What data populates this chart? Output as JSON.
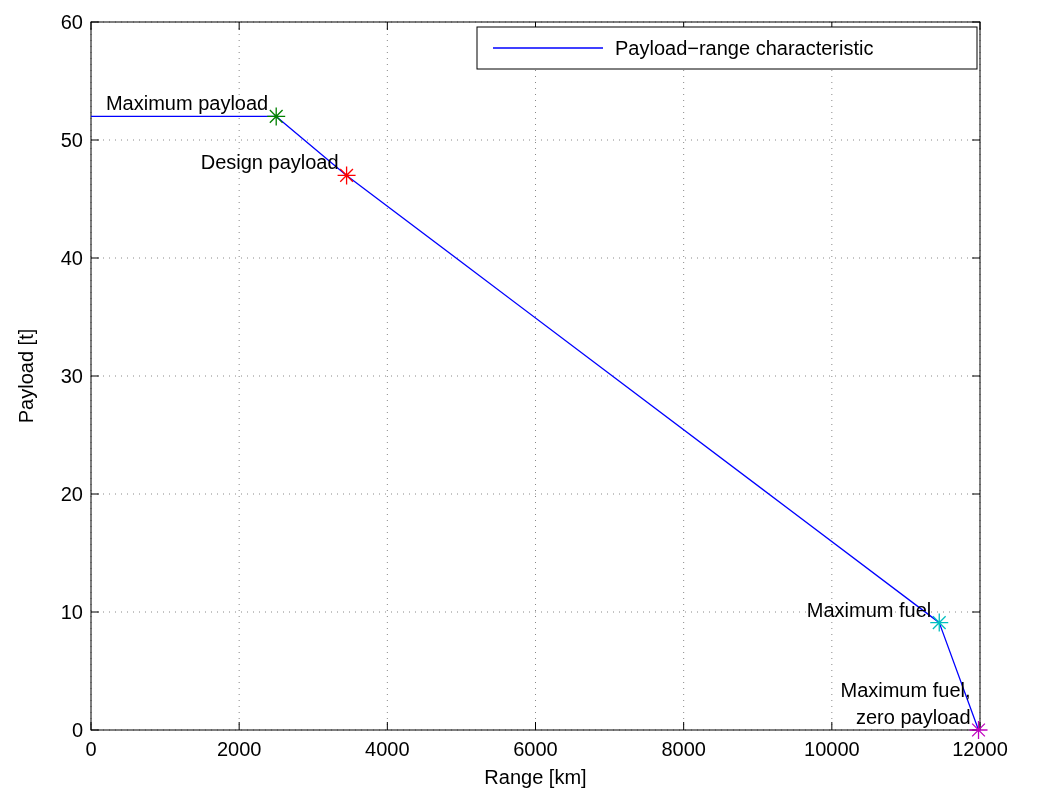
{
  "chart_data": {
    "type": "line",
    "xlabel": "Range [km]",
    "ylabel": "Payload [t]",
    "xlim": [
      0,
      12000
    ],
    "xticks": [
      0,
      2000,
      4000,
      6000,
      8000,
      10000,
      12000
    ],
    "ylim": [
      0,
      60
    ],
    "yticks": [
      0,
      10,
      20,
      30,
      40,
      50,
      60
    ],
    "grid": true,
    "legend": "top right",
    "line_style": "solid",
    "series": [
      {
        "name": "Payload−range characteristic",
        "color": "#0000ff",
        "marker": "none",
        "x": [
          0,
          2500,
          3450,
          11450,
          11980
        ],
        "values": [
          52,
          52,
          47,
          9.1,
          0
        ]
      },
      {
        "color": "#008000",
        "type": "scatter",
        "marker": "cross",
        "x": [
          2500
        ],
        "values": [
          52
        ]
      },
      {
        "color": "#ff0000",
        "type": "scatter",
        "marker": "cross",
        "x": [
          3450
        ],
        "values": [
          47
        ]
      },
      {
        "color": "#00bfbf",
        "type": "scatter",
        "marker": "cross",
        "x": [
          11450
        ],
        "values": [
          9.1
        ]
      },
      {
        "color": "#bf00bf",
        "type": "scatter",
        "marker": "cross",
        "x": [
          11980
        ],
        "values": [
          0
        ]
      }
    ],
    "annotations": [
      {
        "text": "Maximum payload",
        "x": 2500,
        "y": 52
      },
      {
        "text": "Design payload",
        "x": 3450,
        "y": 47
      },
      {
        "text": "Maximum fuel",
        "x": 11450,
        "y": 9.1
      },
      {
        "text": "Maximum fuel,\nzero payload",
        "x": 11980,
        "y": 0
      }
    ]
  }
}
